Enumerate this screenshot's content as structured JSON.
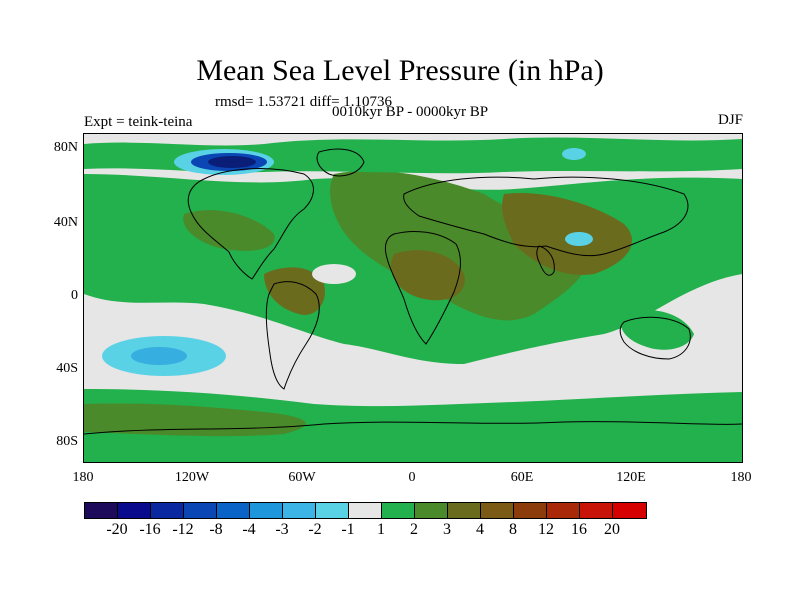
{
  "header": {
    "title": "Mean Sea Level Pressure (in hPa)",
    "stats": "rmsd= 1.53721 diff= 1.10736",
    "subtitle": "0010kyr BP - 0000kyr BP",
    "experiment": "Expt = teink-teina",
    "season": "DJF"
  },
  "map": {
    "y_labels": [
      "80N",
      "40N",
      "0",
      "40S",
      "80S"
    ],
    "x_labels": [
      "180",
      "120W",
      "60W",
      "0",
      "60E",
      "120E",
      "180"
    ],
    "colors": {
      "land_outline": "#000000",
      "neutral": "#e6e6e6",
      "green_1": "#22b14c",
      "green_2": "#4a8a2a",
      "olive_3": "#6b6b1e",
      "cyan": "#5ad2e6",
      "navy": "#0a1e78"
    }
  },
  "colorbar": {
    "labels": [
      "-20",
      "-16",
      "-12",
      "-8",
      "-4",
      "-3",
      "-2",
      "-1",
      "1",
      "2",
      "3",
      "4",
      "8",
      "12",
      "16",
      "20"
    ],
    "colors": [
      "#1e0a5a",
      "#0a0a8c",
      "#0a28a0",
      "#0a46b4",
      "#0a64c8",
      "#1e96dc",
      "#3cb4e6",
      "#5ad2e6",
      "#e6e6e6",
      "#22b14c",
      "#4a8a2a",
      "#6b6b1e",
      "#7a5a14",
      "#8c3c0a",
      "#a82808",
      "#c81408",
      "#d70000"
    ]
  }
}
